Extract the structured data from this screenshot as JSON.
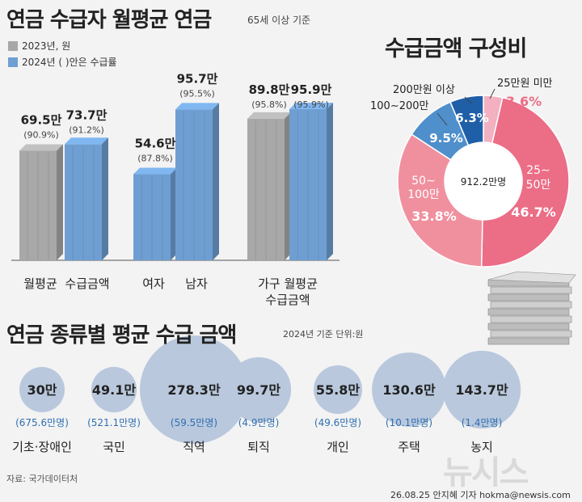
{
  "title": "연금 수급자 월평균 연금",
  "title_note": "65세 이상 기준",
  "legend": [
    {
      "label": "2023년, 원",
      "color": "#a8a8a8"
    },
    {
      "label": "2024년 ( )안은 수급률",
      "color": "#6f9fd2"
    }
  ],
  "chart_data": [
    {
      "type": "bar",
      "categories": [
        "월평균",
        "수급금액",
        "여자",
        "남자",
        "가구 월평균 수급금액"
      ],
      "category_labels": [
        [
          "월평균"
        ],
        [
          "수급금액"
        ],
        [
          "여자"
        ],
        [
          "남자"
        ],
        [
          "가구  월평균",
          "수급금액"
        ]
      ],
      "series": [
        {
          "name": "2023년, 원",
          "color": "#a8a8a8",
          "values": [
            69.5,
            null,
            null,
            null,
            89.8
          ],
          "value_labels": [
            "69.5만",
            null,
            null,
            null,
            "89.8만"
          ],
          "rate_labels": [
            "(90.9%)",
            null,
            null,
            null,
            "(95.8%)"
          ]
        },
        {
          "name": "2024년",
          "color": "#6f9fd2",
          "values": [
            73.7,
            54.6,
            95.7,
            null,
            95.9
          ],
          "value_labels": [
            "73.7만",
            "54.6만",
            "95.7만",
            null,
            "95.9만"
          ],
          "rate_labels": [
            "(91.2%)",
            "(87.8%)",
            "(95.5%)",
            null,
            "(95.9%)"
          ]
        }
      ],
      "units": "만원",
      "ylim": [
        0,
        110
      ]
    },
    {
      "type": "pie",
      "title": "수급금액 구성비",
      "center_label": "912.2만명",
      "slices": [
        {
          "label": "25만원 미만",
          "value": 3.6,
          "value_label": "3.6%",
          "color": "#f3b0c0"
        },
        {
          "label": "25~50만",
          "value": 46.7,
          "value_label": "46.7%",
          "color": "#ec6d86"
        },
        {
          "label": "50~100만",
          "value": 33.8,
          "value_label": "33.8%",
          "color": "#f0909f"
        },
        {
          "label": "100~200만",
          "value": 9.5,
          "value_label": "9.5%",
          "color": "#4f8fcb"
        },
        {
          "label": "200만원 이상",
          "value": 6.3,
          "value_label": "6.3%",
          "color": "#1f5fa8"
        }
      ]
    },
    {
      "type": "bubble",
      "title": "연금 종류별 평균 수급 금액",
      "note": "2024년 기준 단위:원",
      "items": [
        {
          "category": "기초·장애인",
          "value": 30,
          "value_label": "30만",
          "people": "(675.6만명)"
        },
        {
          "category": "국민",
          "value": 49.1,
          "value_label": "49.1만",
          "people": "(521.1만명)"
        },
        {
          "category": "직역",
          "value": 278.3,
          "value_label": "278.3만",
          "people": "(59.5만명)"
        },
        {
          "category": "퇴직",
          "value": 99.7,
          "value_label": "99.7만",
          "people": "(4.9만명)"
        },
        {
          "category": "개인",
          "value": 55.8,
          "value_label": "55.8만",
          "people": "(49.6만명)"
        },
        {
          "category": "주택",
          "value": 130.6,
          "value_label": "130.6만",
          "people": "(10.1만명)"
        },
        {
          "category": "농지",
          "value": 143.7,
          "value_label": "143.7만",
          "people": "(1.4만명)"
        }
      ]
    }
  ],
  "source": "자료: 국가데이터처",
  "credit": "26.08.25 안지혜 기자 hokma@newsis.com",
  "watermark": "뉴시스"
}
